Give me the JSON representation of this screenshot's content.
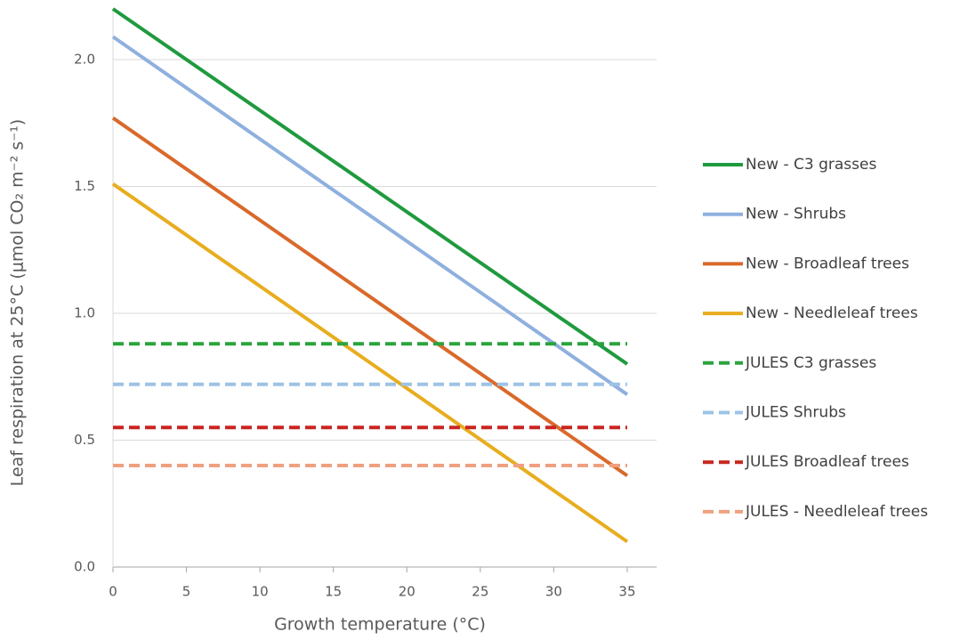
{
  "chart_data": {
    "type": "line",
    "xlabel": "Growth temperature (°C)",
    "ylabel": "Leaf respiration at 25°C (μmol CO₂ m⁻² s⁻¹)",
    "x": [
      0,
      35
    ],
    "xlim": [
      0,
      37
    ],
    "xticks": [
      0,
      5,
      10,
      15,
      20,
      25,
      30,
      35
    ],
    "ylim": [
      0,
      2.2
    ],
    "yticks": [
      {
        "value": 0,
        "label": "0.0"
      },
      0.5,
      {
        "value": 1,
        "label": "1.0"
      },
      1.5,
      {
        "value": 2,
        "label": "2.0"
      }
    ],
    "grid": true,
    "legend": "right",
    "series": [
      {
        "name": "New - C3 grasses",
        "color": "#1f9a3e",
        "dashed": false,
        "values": [
          2.2,
          0.8
        ]
      },
      {
        "name": "New - Shrubs",
        "color": "#8fb0de",
        "dashed": false,
        "values": [
          2.09,
          0.68
        ]
      },
      {
        "name": "New - Broadleaf trees",
        "color": "#d9692a",
        "dashed": false,
        "values": [
          1.77,
          0.36
        ]
      },
      {
        "name": "New - Needleleaf trees",
        "color": "#e8ad1f",
        "dashed": false,
        "values": [
          1.51,
          0.1
        ]
      },
      {
        "name": "JULES C3 grasses",
        "color": "#2aa33f",
        "dashed": true,
        "values": [
          0.88,
          0.88
        ]
      },
      {
        "name": "JULES Shrubs",
        "color": "#9dc3e6",
        "dashed": true,
        "values": [
          0.72,
          0.72
        ]
      },
      {
        "name": "JULES Broadleaf trees",
        "color": "#c8261f",
        "dashed": true,
        "values": [
          0.55,
          0.55
        ]
      },
      {
        "name": "JULES - Needleleaf trees",
        "color": "#f0a080",
        "dashed": true,
        "values": [
          0.4,
          0.4
        ]
      }
    ]
  }
}
